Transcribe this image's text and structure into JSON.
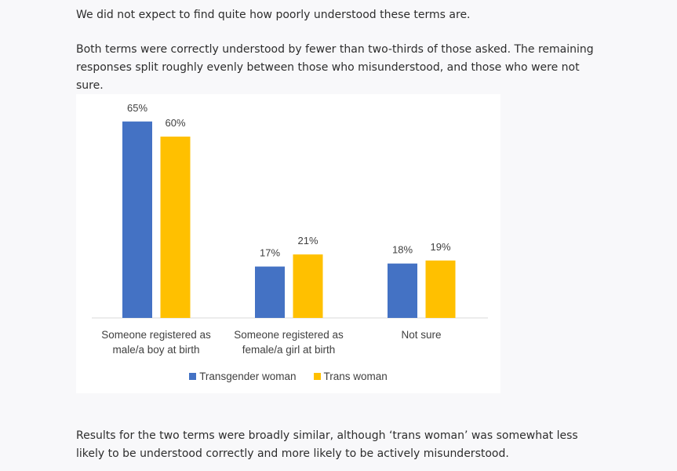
{
  "paragraphs": [
    "We did not expect to find quite how poorly understood these terms are.",
    "Both terms were correctly understood by fewer than two-thirds of those asked. The remaining responses split roughly evenly between those who misunderstood, and those who were not sure.",
    "Results for the two terms were broadly similar, although ‘trans woman’ was somewhat less likely to be understood correctly and more likely to be actively misunderstood."
  ],
  "chart_data": {
    "type": "bar",
    "categories": [
      "Someone registered as male/a boy at birth",
      "Someone registered as female/a girl at birth",
      "Not sure"
    ],
    "series": [
      {
        "name": "Transgender woman",
        "color": "#4472c4",
        "values": [
          65,
          17,
          18
        ],
        "value_labels": [
          "65%",
          "17%",
          "18%"
        ]
      },
      {
        "name": "Trans woman",
        "color": "#ffc000",
        "values": [
          60,
          21,
          19
        ],
        "value_labels": [
          "60%",
          "21%",
          "19%"
        ]
      }
    ],
    "legend": "bottom"
  }
}
